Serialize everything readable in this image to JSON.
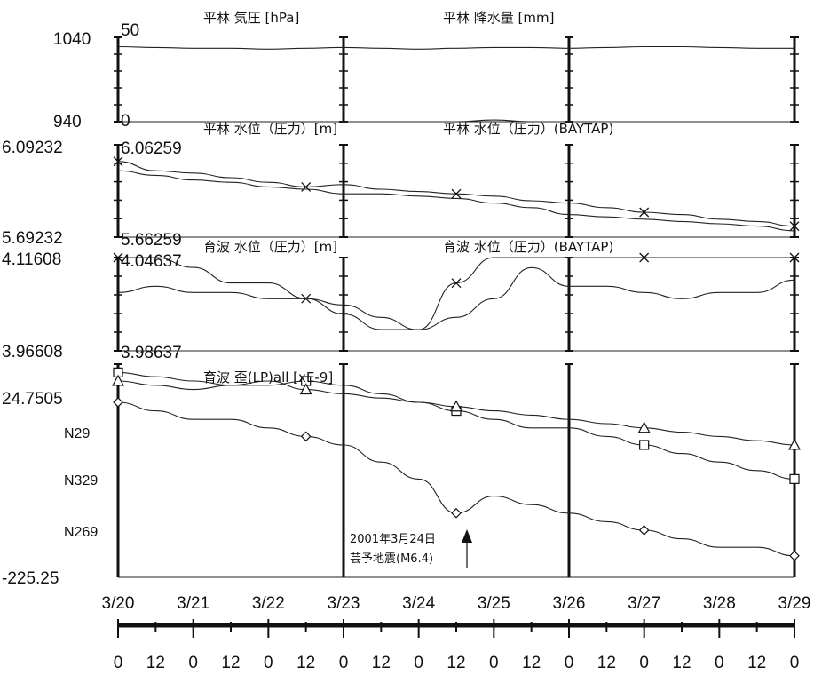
{
  "chart_data": {
    "type": "line",
    "x_ticks": [
      "3/20",
      "3/21",
      "3/22",
      "3/23",
      "3/24",
      "3/25",
      "3/26",
      "3/27",
      "3/28",
      "3/29"
    ],
    "hour_ticks": [
      "0",
      "12",
      "0",
      "12",
      "0",
      "12",
      "0",
      "12",
      "0",
      "12",
      "0",
      "12",
      "0",
      "12",
      "0",
      "12",
      "0",
      "12",
      "0"
    ],
    "panels": [
      {
        "titles": [
          "平林 気圧 [hPa]",
          "平林 降水量 [mm]"
        ],
        "left_axis": {
          "top": "1040",
          "bottom": "940"
        },
        "right_axis": {
          "top": "50",
          "bottom": "0"
        },
        "series": [
          {
            "marker": "none",
            "values": [
              1029,
              1028,
              1027,
              1027,
              1026,
              1027,
              1028,
              1027,
              1026,
              1027,
              1028,
              1028,
              1027,
              1028,
              1029,
              1029,
              1028,
              1027,
              1027
            ]
          },
          {
            "marker": "none",
            "values": [
              0,
              0,
              0,
              0,
              0,
              0,
              0,
              0,
              0,
              0,
              1,
              0,
              0,
              0,
              0,
              0,
              0,
              0,
              0
            ]
          }
        ]
      },
      {
        "titles": [
          "平林 水位（圧力）[m]",
          "平林 水位（圧力）(BAYTAP)"
        ],
        "left_axis": {
          "top": "6.09232",
          "bottom": "5.69232"
        },
        "right_axis": {
          "top": "6.06259",
          "bottom": "5.66259"
        },
        "series": [
          {
            "marker": "x",
            "values": [
              6.02,
              5.98,
              5.97,
              5.95,
              5.93,
              5.91,
              5.92,
              5.9,
              5.89,
              5.88,
              5.87,
              5.85,
              5.84,
              5.82,
              5.8,
              5.79,
              5.77,
              5.76,
              5.74
            ]
          },
          {
            "marker": "none",
            "values": [
              5.98,
              5.96,
              5.94,
              5.93,
              5.91,
              5.9,
              5.88,
              5.88,
              5.87,
              5.86,
              5.84,
              5.82,
              5.79,
              5.78,
              5.77,
              5.76,
              5.75,
              5.74,
              5.72
            ]
          }
        ]
      },
      {
        "titles": [
          "育波 水位（圧力）[m]",
          "育波 水位（圧力）(BAYTAP)"
        ],
        "left_axis": {
          "top": "4.11608",
          "bottom": "3.96608"
        },
        "right_axis": {
          "top": "4.04637",
          "bottom": "3.98637"
        },
        "series": [
          {
            "marker": "x",
            "values": [
              4.06,
              4.05,
              4.04,
              4.03,
              4.03,
              4.02,
              4.01,
              4.0,
              4.0,
              4.03,
              4.06,
              4.07,
              4.08,
              4.08,
              4.09,
              4.09,
              4.08,
              4.08,
              4.08
            ]
          },
          {
            "marker": "none",
            "values": [
              4.06,
              4.07,
              4.06,
              4.06,
              4.05,
              4.05,
              4.04,
              4.02,
              4.0,
              4.02,
              4.05,
              4.1,
              4.07,
              4.07,
              4.06,
              4.05,
              4.06,
              4.06,
              4.08
            ]
          }
        ]
      },
      {
        "titles": [
          "育波 歪(LP)all [xE-9]"
        ],
        "left_axis": {
          "top": "24.7505",
          "bottom": "-225.25",
          "ticks": [
            "N29",
            "N329",
            "N269"
          ]
        },
        "annotation": [
          "2001年3月24日",
          "芸予地震(M6.4)"
        ],
        "series": [
          {
            "marker": "square",
            "values": [
              15,
              10,
              5,
              0,
              0,
              5,
              0,
              -10,
              -20,
              -30,
              -40,
              -50,
              -50,
              -60,
              -70,
              -80,
              -90,
              -100,
              -110
            ]
          },
          {
            "marker": "triangle",
            "values": [
              5,
              0,
              -5,
              0,
              5,
              -5,
              -10,
              -15,
              -20,
              -25,
              -30,
              -35,
              -40,
              -45,
              -50,
              -55,
              -60,
              -65,
              -70
            ]
          },
          {
            "marker": "diamond",
            "values": [
              -20,
              -30,
              -40,
              -40,
              -50,
              -60,
              -70,
              -90,
              -110,
              -150,
              -130,
              -140,
              -150,
              -160,
              -170,
              -180,
              -190,
              -190,
              -200
            ]
          }
        ]
      }
    ]
  }
}
